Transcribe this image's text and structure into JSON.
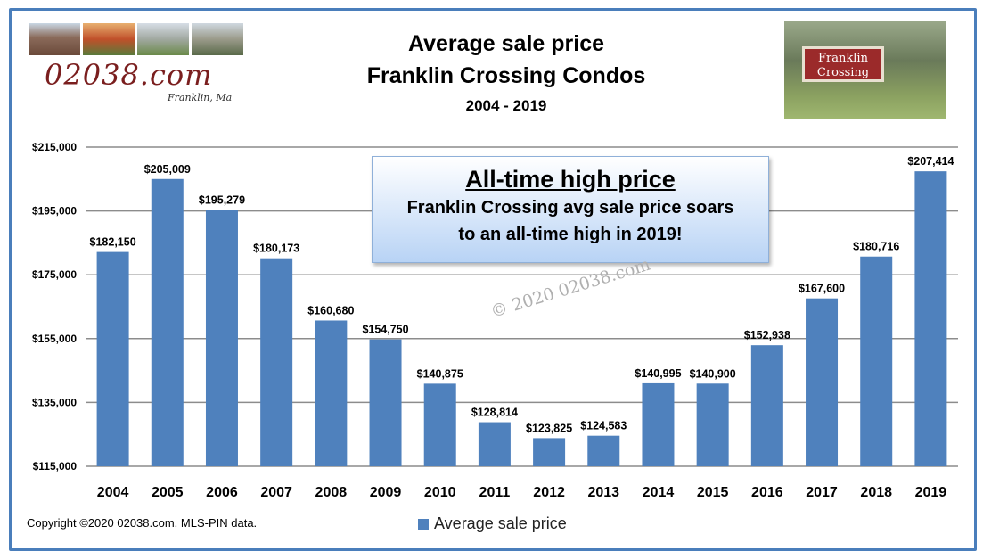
{
  "title": "Average sale price",
  "subtitle": "Franklin Crossing Condos",
  "date_range": "2004 - 2019",
  "logo": {
    "text": "02038.com",
    "subtext": "Franklin, Ma"
  },
  "sign": {
    "line1": "Franklin",
    "line2": "Crossing"
  },
  "callout": {
    "heading": "All-time high price",
    "line1": "Franklin Crossing avg sale price soars",
    "line2": "to an all-time high in 2019!"
  },
  "watermark": "© 2020 02038.com",
  "copyright": "Copyright ©2020 02038.com.  MLS-PIN data.",
  "colors": {
    "bar": "#4f81bd",
    "frame": "#4a7ebb"
  },
  "chart_data": {
    "type": "bar",
    "categories": [
      "2004",
      "2005",
      "2006",
      "2007",
      "2008",
      "2009",
      "2010",
      "2011",
      "2012",
      "2013",
      "2014",
      "2015",
      "2016",
      "2017",
      "2018",
      "2019"
    ],
    "series": [
      {
        "name": "Average sale price",
        "values": [
          182150,
          205009,
          195279,
          180173,
          160680,
          154750,
          140875,
          128814,
          123825,
          124583,
          140995,
          140900,
          152938,
          167600,
          180716,
          207414
        ],
        "labels": [
          "$182,150",
          "$205,009",
          "$195,279",
          "$180,173",
          "$160,680",
          "$154,750",
          "$140,875",
          "$128,814",
          "$123,825",
          "$124,583",
          "$140,995",
          "$140,900",
          "$152,938",
          "$167,600",
          "$180,716",
          "$207,414"
        ]
      }
    ],
    "yticks": [
      "$215,000",
      "$195,000",
      "$175,000",
      "$155,000",
      "$135,000",
      "$115,000"
    ],
    "ytick_values": [
      215000,
      195000,
      175000,
      155000,
      135000,
      115000
    ],
    "ylim": [
      115000,
      215000
    ],
    "grid": true,
    "legend": "bottom"
  }
}
